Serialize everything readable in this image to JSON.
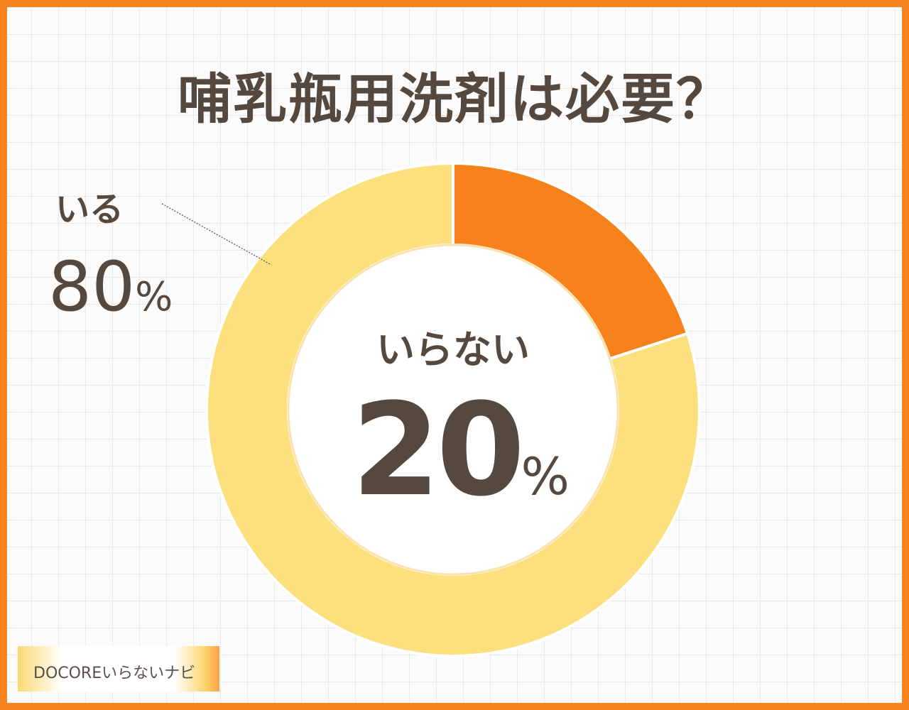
{
  "title": "哺乳瓶用洗剤は必要？",
  "logo_text": "DOCOREいらないナビ",
  "chart_data": {
    "type": "pie",
    "variant": "donut",
    "categories": [
      "いらない",
      "いる"
    ],
    "values": [
      20,
      80
    ],
    "unit": "%",
    "colors": {
      "いらない": "#f7821b",
      "いる": "#fde07e"
    },
    "labels": [
      {
        "category": "いらない",
        "name": "いらない",
        "value": "20",
        "unit": "%",
        "position": "center"
      },
      {
        "category": "いる",
        "name": "いる",
        "value": "80",
        "unit": "%",
        "position": "top-left"
      }
    ]
  },
  "colors": {
    "border": "#f7841c",
    "text": "#54483f"
  }
}
